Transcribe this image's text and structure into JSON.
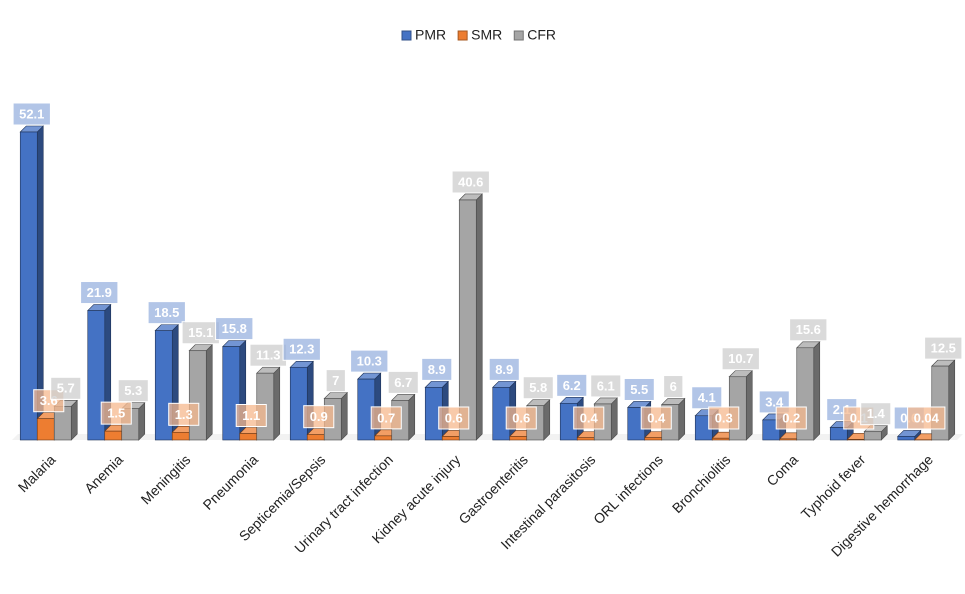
{
  "chart_data": {
    "type": "bar3d",
    "categories": [
      "Malaria",
      "Anemia",
      "Meningitis",
      "Pneumonia",
      "Septicemia/Sepsis",
      "Urinary tract infection",
      "Kidney acute injury",
      "Gastroenteritis",
      "Intestinal parasitosis",
      "ORL infections",
      "Bronchiolitis",
      "Coma",
      "Typhoid fever",
      "Digestive hemorrhage"
    ],
    "series": [
      {
        "name": "PMR",
        "color": "#4472c4",
        "values": [
          52.1,
          21.9,
          18.5,
          15.8,
          12.3,
          10.3,
          8.9,
          8.9,
          6.2,
          5.5,
          4.1,
          3.4,
          2.1,
          0.6
        ]
      },
      {
        "name": "SMR",
        "color": "#ed7d31",
        "values": [
          3.6,
          1.5,
          1.3,
          1.1,
          0.9,
          0.7,
          0.6,
          0.6,
          0.4,
          0.4,
          0.3,
          0.2,
          0.1,
          0.04
        ]
      },
      {
        "name": "CFR",
        "color": "#a5a5a5",
        "values": [
          5.7,
          5.3,
          15.1,
          11.3,
          7,
          6.7,
          40.6,
          5.8,
          6.1,
          6,
          10.7,
          15.6,
          1.4,
          12.5
        ]
      }
    ],
    "legend": "top"
  }
}
